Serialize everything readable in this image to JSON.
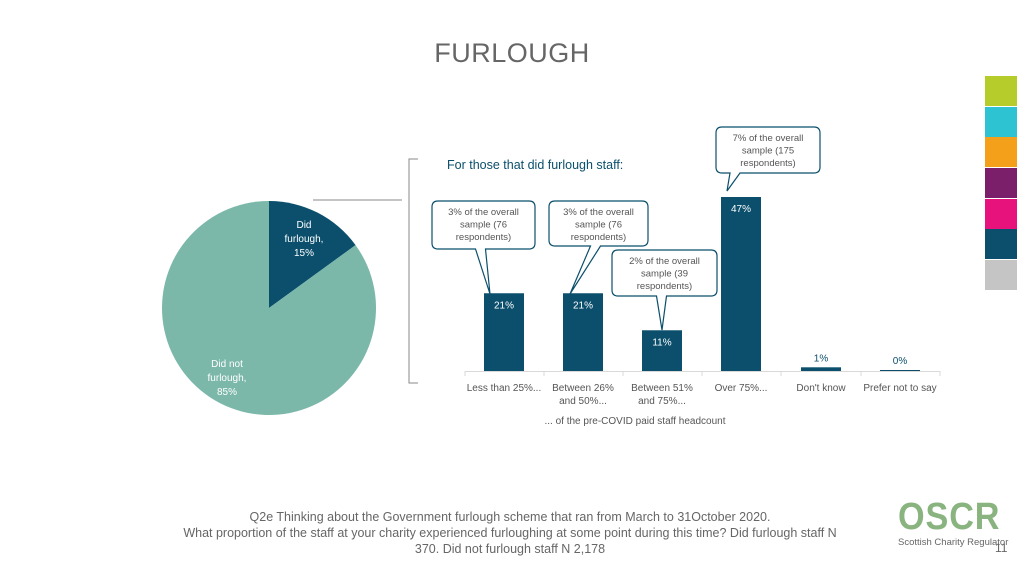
{
  "page": {
    "title": "FURLOUGH",
    "page_number": "11",
    "footer_lines": [
      "Q2e Thinking about the Government furlough scheme that ran from March to 31October 2020.",
      "What proportion of the staff at your charity experienced furloughing at some point during this time? Did furlough staff N",
      "370. Did not furlough staff  N 2,178"
    ],
    "logo": {
      "name": "OSCR",
      "tagline": "Scottish Charity Regulator"
    },
    "swatches": [
      "#b5cc2b",
      "#2ec3d3",
      "#f5a01a",
      "#7b1f6b",
      "#e8127c",
      "#0b4f6c",
      "#c5c5c5"
    ]
  },
  "chart_data": [
    {
      "type": "pie",
      "labels": [
        "Did furlough, 15%",
        "Did not furlough, 85%"
      ],
      "values": [
        15,
        85
      ],
      "colors": [
        "#0b4f6c",
        "#7bb8aa"
      ]
    },
    {
      "type": "bar",
      "subtitle": "For those that did furlough staff:",
      "xlabel": "... of the pre-COVID paid staff headcount",
      "categories": [
        "Less than 25%...",
        "Between 26% and 50%...",
        "Between 51% and 75%...",
        "Over 75%...",
        "Don't know",
        "Prefer not to say"
      ],
      "values": [
        21,
        21,
        11,
        47,
        1,
        0
      ],
      "data_labels": [
        "21%",
        "21%",
        "11%",
        "47%",
        "1%",
        "0%"
      ],
      "color": "#0b4f6c",
      "callouts": [
        {
          "category": "Less than 25%...",
          "text": "3% of the overall sample (76 respondents)"
        },
        {
          "category": "Between 26% and 50%...",
          "text": "3% of the overall sample (76 respondents)"
        },
        {
          "category": "Between 51% and 75%...",
          "text": "2% of the overall sample (39 respondents)"
        },
        {
          "category": "Over 75%...",
          "text": "7% of the overall sample (175 respondents)"
        }
      ]
    }
  ]
}
